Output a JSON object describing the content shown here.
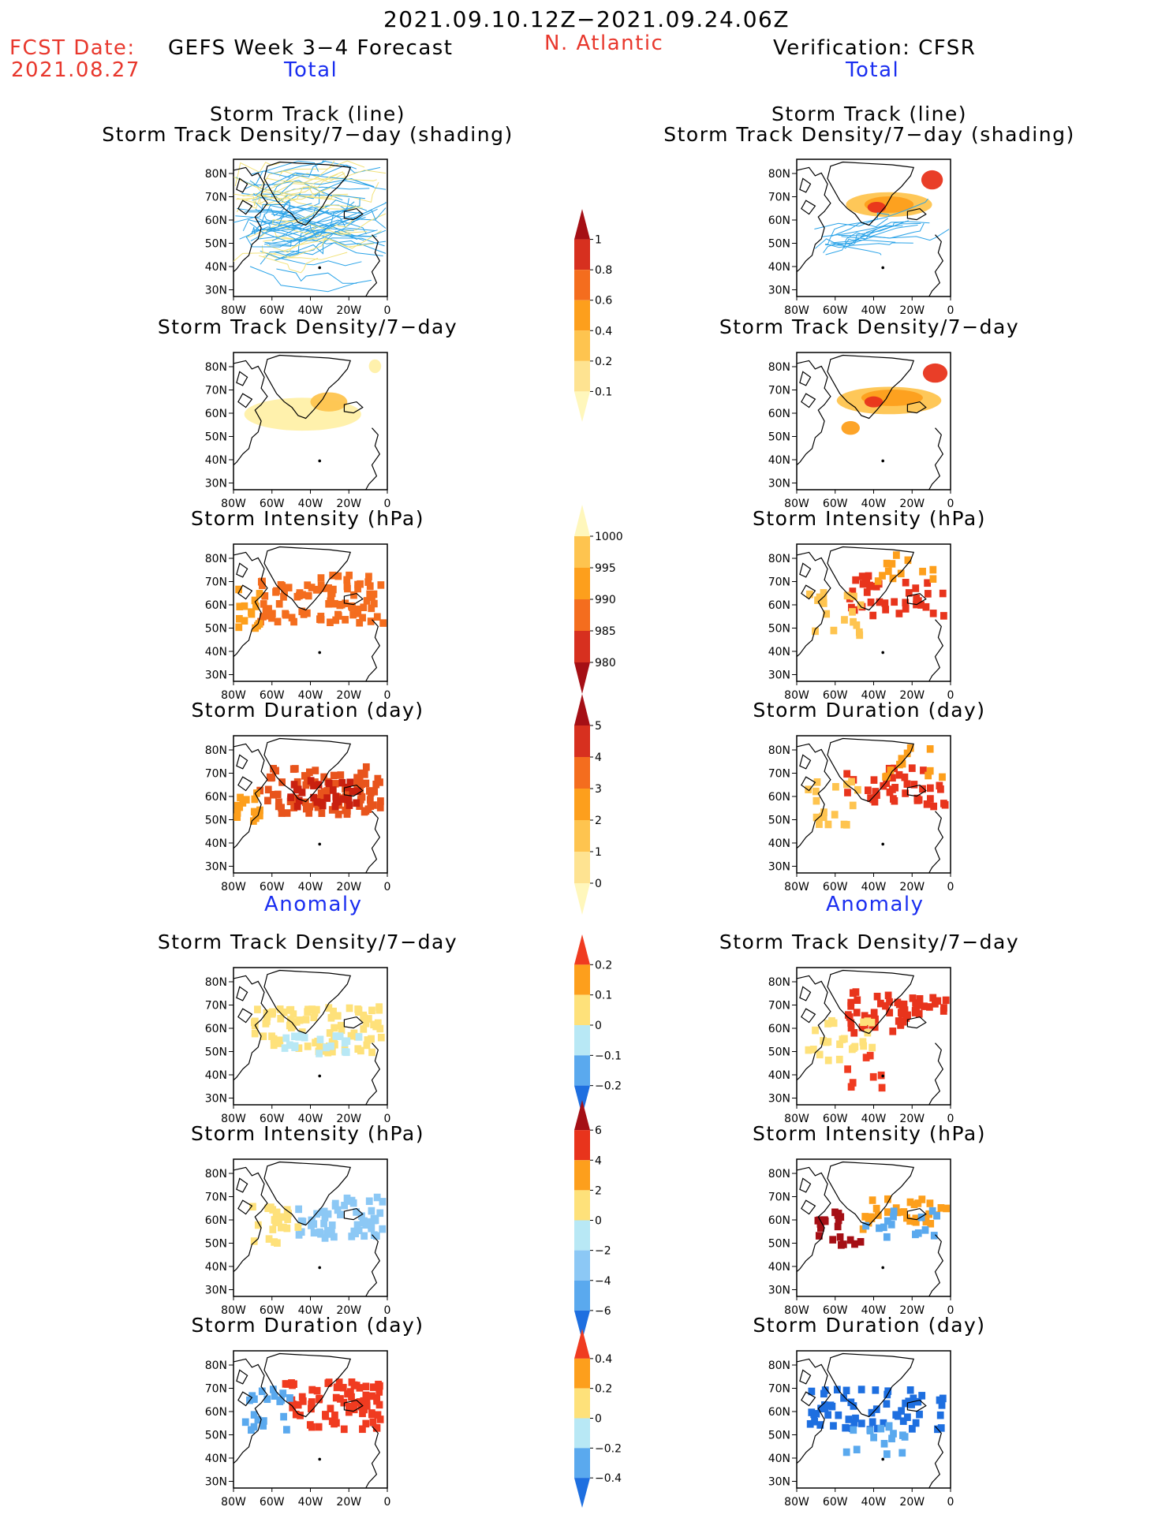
{
  "header": {
    "period": "2021.09.10.12Z−2021.09.24.06Z",
    "fcst_label": "FCST Date:",
    "fcst_date": "2021.08.27",
    "left_title": "GEFS Week 3−4 Forecast",
    "region": "N. Atlantic",
    "right_title": "Verification: CFSR",
    "total_label": "Total",
    "anomaly_label": "Anomaly"
  },
  "panel_titles": {
    "track_line": "Storm Track (line)",
    "track_shading": "Storm Track Density/7−day (shading)",
    "density": "Storm Track Density/7−day",
    "intensity": "Storm Intensity (hPa)",
    "duration": "Storm Duration (day)"
  },
  "map_axes": {
    "lon_labels": [
      "80W",
      "60W",
      "40W",
      "20W",
      "0"
    ],
    "lat_labels": [
      "80N",
      "70N",
      "60N",
      "50N",
      "40N",
      "30N"
    ]
  },
  "colorbars": [
    {
      "id": "density_total",
      "labels": [
        "1",
        "0.8",
        "0.6",
        "0.4",
        "0.2",
        "0.1"
      ],
      "colors": [
        "#a50f15",
        "#d7301f",
        "#f46d1e",
        "#fd9f1c",
        "#fec44f",
        "#fee391",
        "#fff7bc"
      ]
    },
    {
      "id": "intensity_total",
      "labels": [
        "1000",
        "995",
        "990",
        "985",
        "980"
      ],
      "colors": [
        "#fff7bc",
        "#fec44f",
        "#fd9f1c",
        "#f46d1e",
        "#d7301f",
        "#a50f15"
      ]
    },
    {
      "id": "duration_total",
      "labels": [
        "5",
        "4",
        "3",
        "2",
        "1",
        "0"
      ],
      "colors": [
        "#a50f15",
        "#d7301f",
        "#f46d1e",
        "#fd9f1c",
        "#fec44f",
        "#fee391",
        "#fff7bc"
      ]
    },
    {
      "id": "density_anom",
      "labels": [
        "0.2",
        "0.1",
        "0",
        "−0.1",
        "−0.2"
      ],
      "colors": [
        "#f03b20",
        "#fd9f1c",
        "#fee17a",
        "#b8e8f5",
        "#5aa9ee",
        "#1e6fe0"
      ]
    },
    {
      "id": "intensity_anom",
      "labels": [
        "6",
        "4",
        "2",
        "0",
        "−2",
        "−4",
        "−6"
      ],
      "colors": [
        "#a50f15",
        "#e8341c",
        "#fd9f1c",
        "#fee17a",
        "#b8e8f5",
        "#8cc8f5",
        "#5aa9ee",
        "#1e6fe0"
      ]
    },
    {
      "id": "duration_anom",
      "labels": [
        "0.4",
        "0.2",
        "0",
        "−0.2",
        "−0.4"
      ],
      "colors": [
        "#f03b20",
        "#fd9f1c",
        "#fee17a",
        "#b8e8f5",
        "#5aa9ee",
        "#1e6fe0"
      ]
    }
  ],
  "colors": {
    "track_forecast": "#2aa3e8",
    "track_forecast_alt": "#f2e27a",
    "track_verification": "#2aa3e8",
    "title_red": "#e8372c",
    "title_blue": "#1a2ef0"
  }
}
